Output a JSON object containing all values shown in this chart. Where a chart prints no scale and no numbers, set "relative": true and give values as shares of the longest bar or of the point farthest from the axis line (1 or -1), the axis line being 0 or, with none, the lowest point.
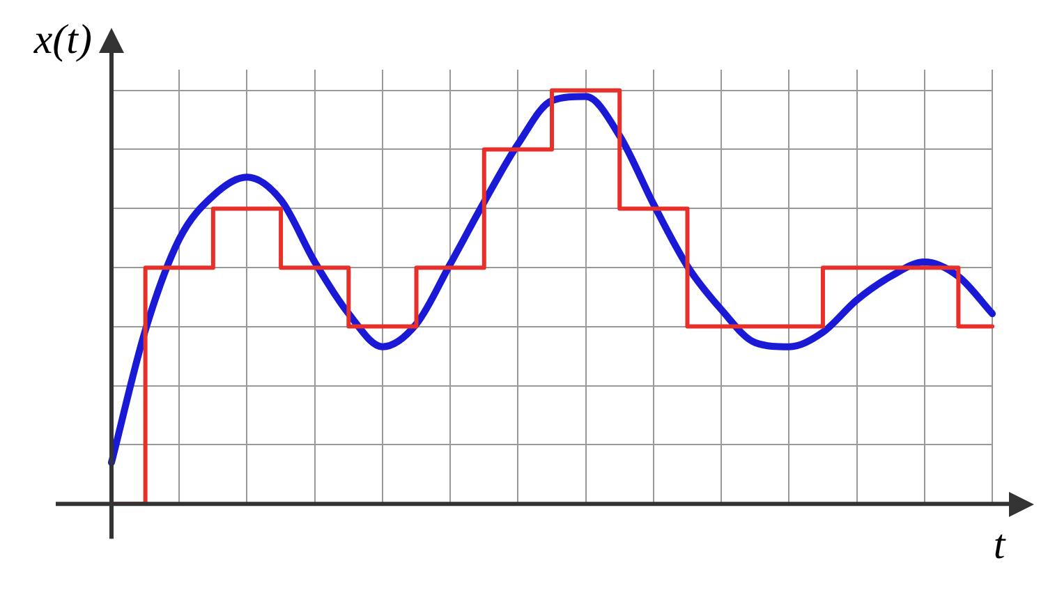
{
  "chart_data": {
    "type": "line",
    "relative": true,
    "xlabel": "t",
    "ylabel": "x(t)",
    "grid": true,
    "legend": false,
    "marker": "none",
    "line_style": "solid",
    "categories": [
      null,
      null,
      null,
      null,
      null,
      null,
      null,
      null,
      null,
      null,
      null,
      null,
      null,
      null,
      null,
      null,
      null,
      null,
      null,
      null,
      null,
      null,
      null,
      null,
      null,
      null,
      null
    ],
    "series": [
      {
        "type": "step",
        "color": "#e8302a",
        "values": [
          0,
          0,
          0.571,
          0.571,
          0.714,
          0.714,
          0.571,
          0.571,
          0.429,
          0.429,
          0.571,
          0.571,
          0.857,
          0.857,
          1,
          1,
          0.714,
          0.714,
          0.429,
          0.429,
          0.429,
          0.429,
          0.571,
          0.571,
          0.571,
          0.571,
          0.429
        ]
      },
      {
        "color": "#1a1ad6",
        "values": [
          0.1,
          0.42,
          0.64,
          0.745,
          0.79,
          0.735,
          0.585,
          0.46,
          0.38,
          0.435,
          0.58,
          0.73,
          0.87,
          0.975,
          0.985,
          0.89,
          0.725,
          0.575,
          0.47,
          0.39,
          0.38,
          0.415,
          0.493,
          0.55,
          0.585,
          0.55,
          0.46
        ]
      }
    ]
  }
}
